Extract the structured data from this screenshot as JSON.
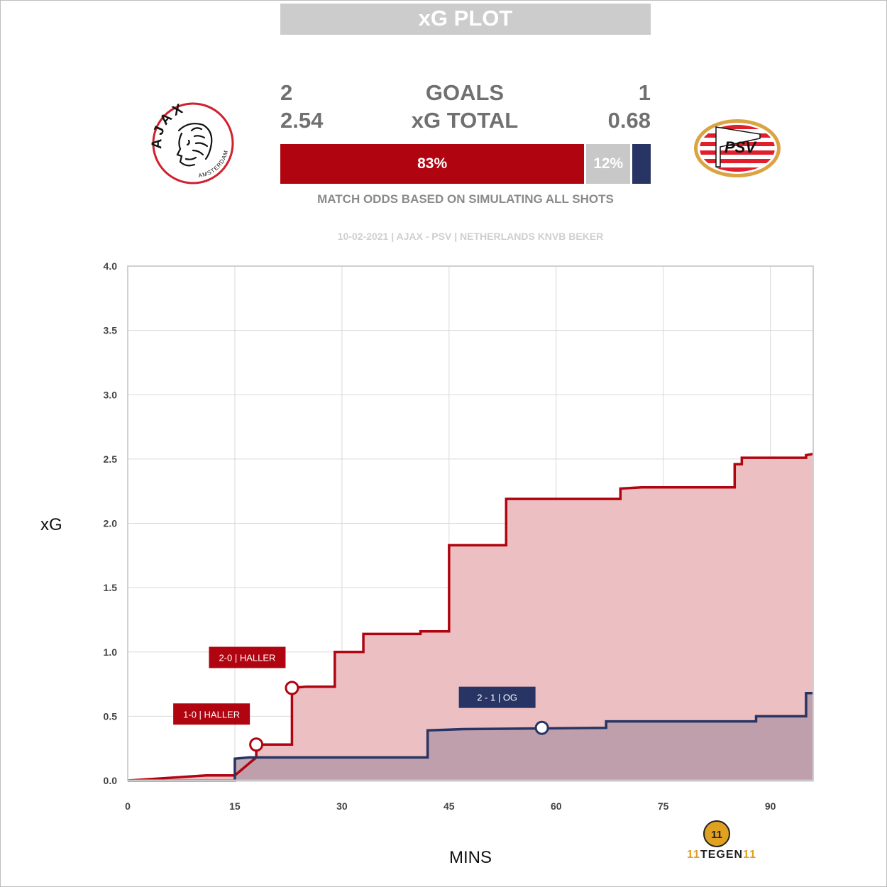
{
  "header": {
    "title": "xG PLOT"
  },
  "teams": {
    "home": {
      "name": "AJAX",
      "logo_text": "AJAX",
      "logo_subtext": "AMSTERDAM",
      "goals": "2",
      "xg_total": "2.54",
      "color": "#b00510"
    },
    "away": {
      "name": "PSV",
      "logo_text": "PSV",
      "goals": "1",
      "xg_total": "0.68",
      "color": "#283463"
    }
  },
  "labels": {
    "goals": "GOALS",
    "xg_total": "xG TOTAL"
  },
  "odds": {
    "home_win_pct": 83,
    "draw_pct": 12,
    "away_win_pct": 5,
    "home_label": "83%",
    "draw_label": "12%",
    "draw_color": "#c8c8c8",
    "note": "MATCH ODDS BASED ON SIMULATING ALL SHOTS"
  },
  "match_info": "10-02-2021 | AJAX - PSV | NETHERLANDS KNVB BEKER",
  "brand": {
    "prefix": "11",
    "word": "TEGEN",
    "suffix": "11",
    "logo_text": "11"
  },
  "chart_data": {
    "type": "line",
    "step": true,
    "xlabel": "MINS",
    "ylabel": "xG",
    "xlim": [
      0,
      96
    ],
    "ylim": [
      0,
      4
    ],
    "xticks": [
      0,
      15,
      30,
      45,
      60,
      75,
      90
    ],
    "yticks": [
      0.0,
      0.5,
      1.0,
      1.5,
      2.0,
      2.5,
      3.0,
      3.5,
      4.0
    ],
    "ytick_labels": [
      "0.0",
      "0.5",
      "1.0",
      "1.5",
      "2.0",
      "2.5",
      "3.0",
      "3.5",
      "4.0"
    ],
    "grid": true,
    "series": [
      {
        "name": "AJAX",
        "color": "#b00510",
        "fill": "#ecc0c3",
        "points": [
          [
            0,
            0
          ],
          [
            11,
            0.04
          ],
          [
            15,
            0.04
          ],
          [
            18,
            0.18
          ],
          [
            18,
            0.28
          ],
          [
            23,
            0.28
          ],
          [
            23,
            0.72
          ],
          [
            25,
            0.73
          ],
          [
            29,
            0.73
          ],
          [
            29,
            1.0
          ],
          [
            33,
            1.0
          ],
          [
            33,
            1.14
          ],
          [
            41,
            1.14
          ],
          [
            41,
            1.16
          ],
          [
            45,
            1.16
          ],
          [
            45,
            1.83
          ],
          [
            53,
            1.83
          ],
          [
            53,
            2.19
          ],
          [
            69,
            2.19
          ],
          [
            69,
            2.27
          ],
          [
            72,
            2.28
          ],
          [
            85,
            2.28
          ],
          [
            85,
            2.46
          ],
          [
            86,
            2.46
          ],
          [
            86,
            2.51
          ],
          [
            95,
            2.51
          ],
          [
            95,
            2.53
          ],
          [
            96,
            2.54
          ]
        ]
      },
      {
        "name": "PSV",
        "color": "#283463",
        "fill": "#b999a8",
        "points": [
          [
            0,
            0
          ],
          [
            15,
            0
          ],
          [
            15,
            0.17
          ],
          [
            17,
            0.18
          ],
          [
            42,
            0.18
          ],
          [
            42,
            0.39
          ],
          [
            47,
            0.4
          ],
          [
            67,
            0.41
          ],
          [
            67,
            0.46
          ],
          [
            88,
            0.46
          ],
          [
            88,
            0.5
          ],
          [
            95,
            0.5
          ],
          [
            95,
            0.68
          ],
          [
            96,
            0.68
          ]
        ]
      }
    ],
    "annotations": [
      {
        "text": "1-0 | HALLER",
        "x": 18,
        "y": 0.28,
        "team": "home"
      },
      {
        "text": "2-0 | HALLER",
        "x": 23,
        "y": 0.72,
        "team": "home"
      },
      {
        "text": "2 - 1 | OG",
        "x": 58,
        "y": 0.41,
        "team": "away"
      }
    ]
  }
}
